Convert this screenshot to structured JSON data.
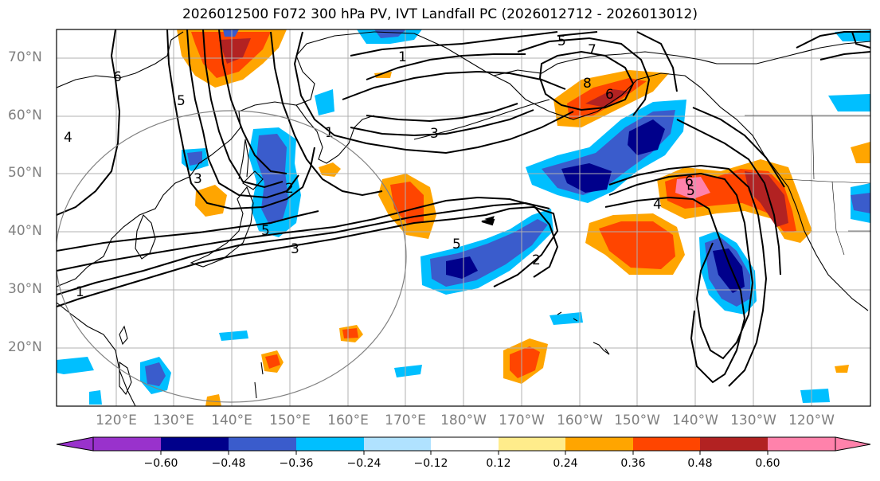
{
  "title": "2026012500 F072 300 hPa PV, IVT Landfall PC (2026012712 - 2026013012)",
  "lat_labels": [
    "70°N",
    "60°N",
    "50°N",
    "40°N",
    "30°N",
    "20°N"
  ],
  "lon_labels": [
    "120°E",
    "130°E",
    "140°E",
    "150°E",
    "160°E",
    "170°E",
    "180°W",
    "170°W",
    "160°W",
    "150°W",
    "140°W",
    "130°W",
    "120°W"
  ],
  "colorbar": {
    "ticks": [
      "−0.60",
      "−0.48",
      "−0.36",
      "−0.24",
      "−0.12",
      "0.12",
      "0.24",
      "0.36",
      "0.48",
      "0.60"
    ],
    "colors": [
      "#9932cc",
      "#00008b",
      "#3a5ccc",
      "#00bfff",
      "#b0e2ff",
      "#ffffff",
      "#ffec8b",
      "#ffa500",
      "#ff4500",
      "#b22222",
      "#ff82ab"
    ]
  },
  "contour_labels": [
    "1",
    "2",
    "3",
    "4",
    "5",
    "6",
    "7",
    "8",
    "1",
    "2",
    "3",
    "4",
    "5",
    "5",
    "6",
    "5",
    "6",
    "5",
    "3",
    "1"
  ],
  "colors": {
    "map_bg": "#ffffff",
    "grid": "#b0b0b0",
    "contour": "#000000",
    "circle": "#808080"
  }
}
